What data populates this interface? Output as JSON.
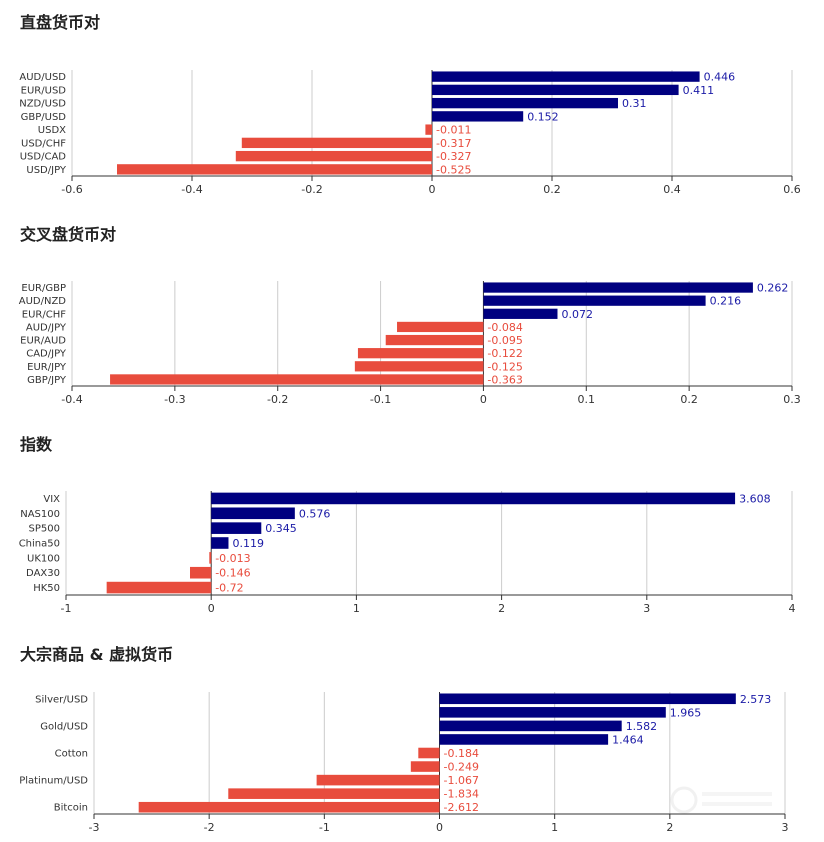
{
  "colors": {
    "positive": "#000080",
    "negative": "#e84c3d",
    "grid": "#cccccc",
    "axis": "#333333"
  },
  "watermark": "WikiFX",
  "chart_data": [
    {
      "type": "bar",
      "orientation": "horizontal",
      "title": "直盘货币对",
      "categories": [
        "AUD/USD",
        "EUR/USD",
        "NZD/USD",
        "GBP/USD",
        "USDX",
        "USD/CHF",
        "USD/CAD",
        "USD/JPY"
      ],
      "values": [
        0.446,
        0.411,
        0.31,
        0.152,
        -0.011,
        -0.317,
        -0.327,
        -0.525
      ],
      "xlim": [
        -0.6,
        0.6
      ],
      "ticks": [
        "-0.6",
        "-0.4",
        "-0.2",
        "0",
        "0.2",
        "0.4",
        "0.6"
      ],
      "grid": true
    },
    {
      "type": "bar",
      "orientation": "horizontal",
      "title": "交叉盘货币对",
      "categories": [
        "EUR/GBP",
        "AUD/NZD",
        "EUR/CHF",
        "AUD/JPY",
        "EUR/AUD",
        "CAD/JPY",
        "EUR/JPY",
        "GBP/JPY"
      ],
      "values": [
        0.262,
        0.216,
        0.072,
        -0.084,
        -0.095,
        -0.122,
        -0.125,
        -0.363
      ],
      "xlim": [
        -0.4,
        0.3
      ],
      "ticks": [
        "-0.4",
        "-0.3",
        "-0.2",
        "-0.1",
        "0",
        "0.1",
        "0.2",
        "0.3"
      ],
      "grid": true
    },
    {
      "type": "bar",
      "orientation": "horizontal",
      "title": "指数",
      "categories": [
        "VIX",
        "NAS100",
        "SP500",
        "China50",
        "UK100",
        "DAX30",
        "HK50"
      ],
      "values": [
        3.608,
        0.576,
        0.345,
        0.119,
        -0.013,
        -0.146,
        -0.72
      ],
      "xlim": [
        -1,
        4
      ],
      "ticks": [
        "-1",
        "0",
        "1",
        "2",
        "3",
        "4"
      ],
      "grid": true
    },
    {
      "type": "bar",
      "orientation": "horizontal",
      "title": "大宗商品 & 虚拟货币",
      "categories": [
        "Silver/USD",
        "",
        "Gold/USD",
        "",
        "Cotton",
        "",
        "Platinum/USD",
        "",
        "Bitcoin"
      ],
      "values": [
        2.573,
        1.965,
        1.582,
        1.464,
        -0.184,
        -0.249,
        -1.067,
        -1.834,
        -2.612
      ],
      "xlim": [
        -3,
        3
      ],
      "ticks": [
        "-3",
        "-2",
        "-1",
        "0",
        "1",
        "2",
        "3"
      ],
      "grid": true
    }
  ]
}
